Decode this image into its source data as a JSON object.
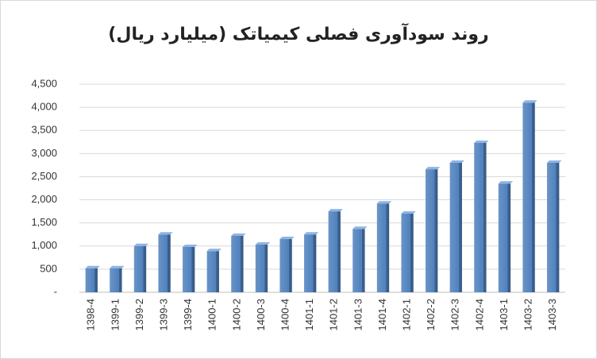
{
  "chart_data": {
    "type": "bar",
    "title": "روند سودآوری فصلی کیمیاتک (میلیارد ریال)",
    "categories": [
      "1398-4",
      "1399-1",
      "1399-2",
      "1399-3",
      "1399-4",
      "1400-1",
      "1400-2",
      "1400-3",
      "1400-4",
      "1401-1",
      "1401-2",
      "1401-3",
      "1401-4",
      "1402-1",
      "1402-2",
      "1402-3",
      "1402-4",
      "1403-1",
      "1403-2",
      "1403-3"
    ],
    "values": [
      520,
      520,
      1000,
      1250,
      980,
      890,
      1220,
      1030,
      1150,
      1250,
      1750,
      1370,
      1920,
      1700,
      2660,
      2800,
      3230,
      2350,
      4100,
      2800
    ],
    "color": "#4f81bd",
    "ylim": [
      0,
      4500
    ],
    "yticks": [
      {
        "value": 0,
        "label": "-"
      },
      500,
      {
        "value": 1000,
        "label": "1,000"
      },
      {
        "value": 1500,
        "label": "1,500"
      },
      {
        "value": 2000,
        "label": "2,000"
      },
      {
        "value": 2500,
        "label": "2,500"
      },
      {
        "value": 3000,
        "label": "3,000"
      },
      {
        "value": 3500,
        "label": "3,500"
      },
      {
        "value": 4000,
        "label": "4,000"
      },
      {
        "value": 4500,
        "label": "4,500"
      }
    ],
    "grid": true
  }
}
